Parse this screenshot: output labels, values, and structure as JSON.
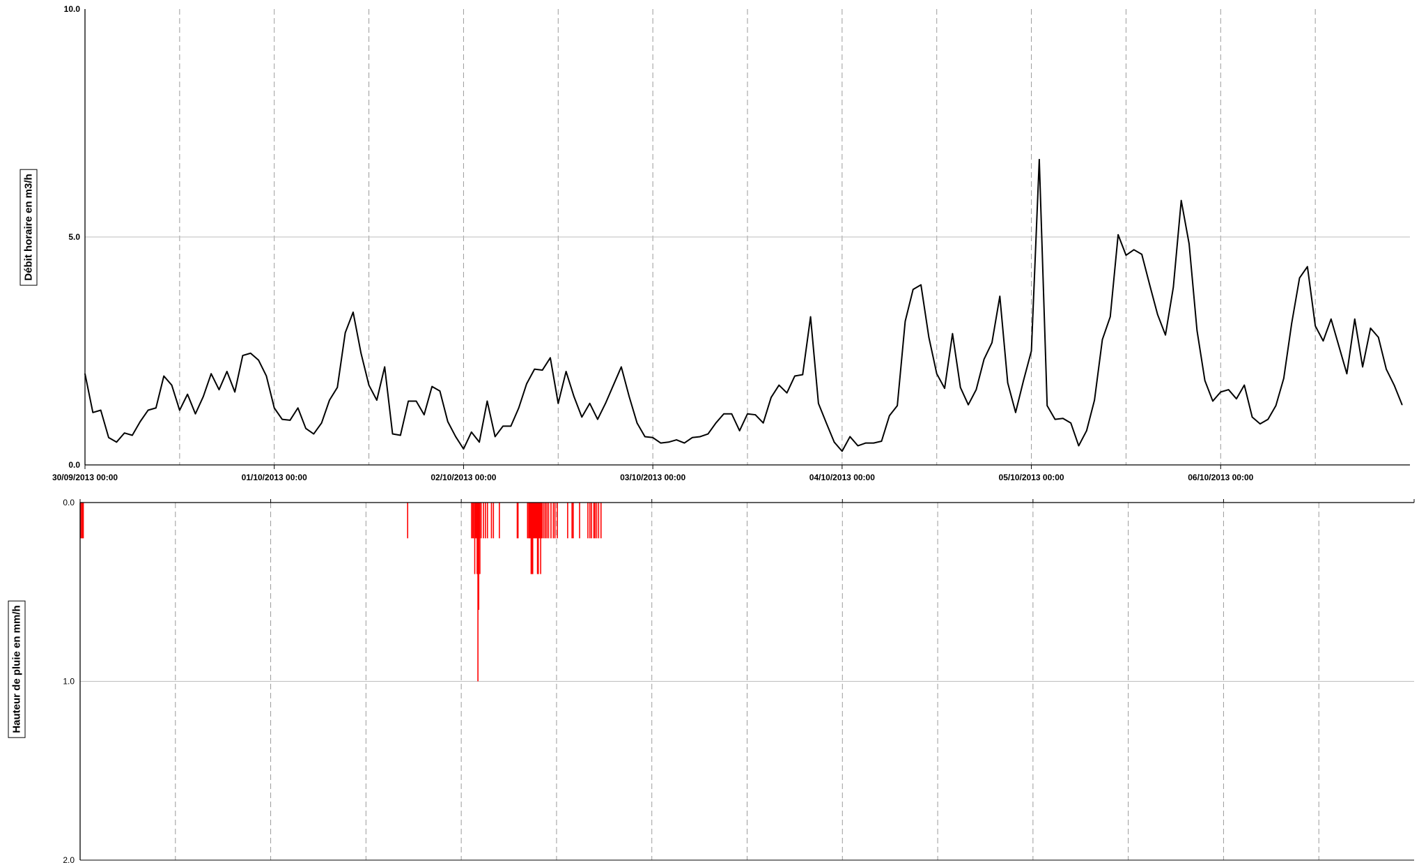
{
  "chart_data": [
    {
      "type": "line",
      "ylabel": "Débit horaire en m3/h",
      "ylim": [
        0,
        10
      ],
      "ytick_labels": [
        "0.0",
        "5.0",
        "10.0"
      ],
      "xlim": [
        "30/09/2013 00:00",
        "07/10/2013 00:00"
      ],
      "xtick_labels": [
        "30/09/2013 00:00",
        "01/10/2013 00:00",
        "02/10/2013 00:00",
        "03/10/2013 00:00",
        "04/10/2013 00:00",
        "05/10/2013 00:00",
        "06/10/2013 00:00"
      ],
      "grid": "horizontal solid at 5.0; vertical dashed every 12 hours",
      "line_color": "#000000",
      "series": [
        {
          "interval_hours": 1,
          "start": "30/09/2013 00:00",
          "values": [
            2.0,
            1.15,
            1.2,
            0.6,
            0.5,
            0.7,
            0.65,
            0.95,
            1.2,
            1.25,
            1.95,
            1.75,
            1.2,
            1.55,
            1.12,
            1.5,
            2.0,
            1.65,
            2.05,
            1.6,
            2.4,
            2.45,
            2.3,
            1.95,
            1.25,
            1.0,
            0.98,
            1.25,
            0.8,
            0.68,
            0.92,
            1.42,
            1.7,
            2.9,
            3.35,
            2.45,
            1.75,
            1.42,
            2.15,
            0.68,
            0.65,
            1.4,
            1.4,
            1.1,
            1.72,
            1.62,
            0.95,
            0.62,
            0.35,
            0.72,
            0.5,
            1.4,
            0.62,
            0.85,
            0.85,
            1.25,
            1.78,
            2.1,
            2.08,
            2.35,
            1.35,
            2.05,
            1.5,
            1.05,
            1.35,
            1.0,
            1.35,
            1.75,
            2.15,
            1.5,
            0.92,
            0.62,
            0.6,
            0.48,
            0.5,
            0.55,
            0.48,
            0.6,
            0.62,
            0.68,
            0.92,
            1.12,
            1.12,
            0.75,
            1.12,
            1.1,
            0.92,
            1.48,
            1.75,
            1.58,
            1.95,
            1.98,
            3.25,
            1.35,
            0.92,
            0.5,
            0.3,
            0.62,
            0.42,
            0.48,
            0.48,
            0.52,
            1.08,
            1.3,
            3.15,
            3.85,
            3.95,
            2.8,
            2.0,
            1.68,
            2.88,
            1.7,
            1.32,
            1.65,
            2.32,
            2.68,
            3.7,
            1.8,
            1.15,
            1.85,
            2.5,
            6.7,
            1.3,
            1.0,
            1.02,
            0.92,
            0.42,
            0.75,
            1.42,
            2.75,
            3.25,
            5.05,
            4.6,
            4.72,
            4.62,
            3.95,
            3.3,
            2.85,
            3.9,
            5.8,
            4.85,
            2.95,
            1.85,
            1.4,
            1.6,
            1.65,
            1.45,
            1.75,
            1.05,
            0.9,
            1.0,
            1.3,
            1.9,
            3.1,
            4.1,
            4.35,
            3.05,
            2.72,
            3.2,
            2.6,
            2.0,
            3.2,
            2.15,
            3.0,
            2.8,
            2.1,
            1.75,
            1.32
          ]
        }
      ]
    },
    {
      "type": "bar",
      "ylabel": "Hauteur de pluie en mm/h",
      "ylim": [
        0,
        2
      ],
      "y_inverted": true,
      "ytick_labels": [
        "0.0",
        "1.0",
        "2.0"
      ],
      "xlim": [
        "30/09/2013 00:00",
        "07/10/2013 00:00"
      ],
      "grid": "horizontal solid at 1.0; vertical dashed every 12 hours",
      "bar_color": "#ff0000",
      "series": [
        {
          "x_hours_since_30_09_2013_00h": [
            0.05,
            0.2,
            0.3,
            0.4,
            41.25,
            49.3,
            49.45,
            49.55,
            49.7,
            49.8,
            49.9,
            50.0,
            50.05,
            50.1,
            50.15,
            50.2,
            50.25,
            50.35,
            50.5,
            50.8,
            51.05,
            51.3,
            51.8,
            52.05,
            52.8,
            55.05,
            55.15,
            56.35,
            56.5,
            56.6,
            56.7,
            56.8,
            56.9,
            57.0,
            57.1,
            57.2,
            57.3,
            57.4,
            57.5,
            57.6,
            57.7,
            57.8,
            57.9,
            58.0,
            58.1,
            58.2,
            58.4,
            58.6,
            58.8,
            59.0,
            59.3,
            59.6,
            59.8,
            60.1,
            61.4,
            61.95,
            62.1,
            62.9,
            63.95,
            64.2,
            64.4,
            64.7,
            64.85,
            65.05,
            65.3,
            65.6
          ],
          "values": [
            0.2,
            0.2,
            0.2,
            0.2,
            0.2,
            0.2,
            0.2,
            0.2,
            0.4,
            0.2,
            0.2,
            0.4,
            0.2,
            1.0,
            0.4,
            0.6,
            0.2,
            0.4,
            0.2,
            0.2,
            0.2,
            0.2,
            0.2,
            0.2,
            0.2,
            0.2,
            0.2,
            0.2,
            0.2,
            0.2,
            0.2,
            0.4,
            0.4,
            0.4,
            0.2,
            0.2,
            0.2,
            0.2,
            0.2,
            0.4,
            0.4,
            0.2,
            0.2,
            0.4,
            0.2,
            0.2,
            0.2,
            0.2,
            0.2,
            0.2,
            0.2,
            0.2,
            0.2,
            0.2,
            0.2,
            0.2,
            0.2,
            0.2,
            0.2,
            0.2,
            0.2,
            0.2,
            0.2,
            0.2,
            0.2,
            0.2
          ]
        }
      ]
    }
  ]
}
